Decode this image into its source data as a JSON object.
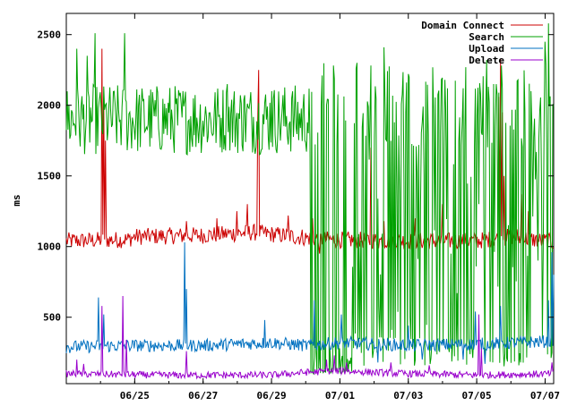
{
  "chart_data": {
    "type": "line",
    "ylabel": "ms",
    "xlabel": "",
    "ylim": [
      30,
      2650
    ],
    "xlim": [
      "2009-06-23T00:00",
      "2009-07-07T06:00"
    ],
    "grid": false,
    "legend_position": "top-right",
    "x_ticks": [
      "06/25",
      "06/27",
      "06/29",
      "07/01",
      "07/03",
      "07/05",
      "07/07"
    ],
    "y_ticks": [
      500,
      1000,
      1500,
      2000,
      2500
    ],
    "series": [
      {
        "name": "Domain Connect",
        "color": "#cc0000",
        "baseline": [
          [
            0,
            1040
          ],
          [
            1.8,
            1050
          ],
          [
            2,
            1070
          ],
          [
            4,
            1080
          ],
          [
            5.5,
            1100
          ],
          [
            7.5,
            1050
          ],
          [
            10,
            1040
          ],
          [
            12,
            1040
          ],
          [
            13,
            1070
          ],
          [
            14.25,
            1030
          ]
        ],
        "spikes": [
          [
            1.05,
            2400
          ],
          [
            1.1,
            2050
          ],
          [
            1.15,
            1750
          ],
          [
            5.6,
            1900
          ],
          [
            5.62,
            2250
          ],
          [
            6.9,
            1120
          ],
          [
            12.65,
            2060
          ],
          [
            12.7,
            2330
          ],
          [
            12.75,
            1950
          ],
          [
            12.8,
            1500
          ],
          [
            13.3,
            1370
          ],
          [
            13.5,
            1250
          ],
          [
            8.9,
            1700
          ],
          [
            7.2,
            1200
          ],
          [
            3.5,
            1180
          ],
          [
            4.4,
            1200
          ],
          [
            5.0,
            1250
          ],
          [
            5.3,
            1300
          ],
          [
            7.4,
            950
          ],
          [
            6.5,
            1220
          ],
          [
            11.0,
            1300
          ],
          [
            10.2,
            1200
          ],
          [
            9.3,
            1180
          ]
        ]
      },
      {
        "name": "Search",
        "color": "#00a000",
        "segments": [
          {
            "from": 0,
            "to": 7.1,
            "low": 1650,
            "high": 2150,
            "peaks": [
              [
                0.3,
                2400
              ],
              [
                0.85,
                2510
              ],
              [
                1.7,
                2510
              ],
              [
                0.6,
                2350
              ],
              [
                3.4,
                2100
              ],
              [
                4.7,
                2150
              ],
              [
                5.2,
                2040
              ],
              [
                6.0,
                2100
              ],
              [
                6.6,
                2050
              ]
            ]
          },
          {
            "from": 7.1,
            "to": 8.35,
            "low": 100,
            "high": 300,
            "peaks": [
              [
                7.12,
                1750
              ],
              [
                7.4,
                300
              ],
              [
                8.0,
                280
              ]
            ]
          },
          {
            "from": 8.35,
            "to": 14.25,
            "low": 150,
            "high": 2300,
            "peaks": [
              [
                8.5,
                2300
              ],
              [
                9.3,
                2410
              ],
              [
                9.6,
                1880
              ],
              [
                10.4,
                1880
              ],
              [
                11.1,
                1970
              ],
              [
                11.6,
                2120
              ],
              [
                12.3,
                2320
              ],
              [
                12.5,
                2150
              ],
              [
                13.2,
                2180
              ],
              [
                13.6,
                2100
              ],
              [
                14.0,
                2450
              ],
              [
                14.1,
                2580
              ]
            ]
          }
        ]
      },
      {
        "name": "Upload",
        "color": "#0070c0",
        "baseline": [
          [
            0,
            290
          ],
          [
            2,
            300
          ],
          [
            4,
            300
          ],
          [
            6,
            320
          ],
          [
            7,
            300
          ],
          [
            8,
            320
          ],
          [
            10,
            300
          ],
          [
            12,
            310
          ],
          [
            14.25,
            330
          ]
        ],
        "spikes": [
          [
            0.95,
            640
          ],
          [
            1.1,
            520
          ],
          [
            3.45,
            1030
          ],
          [
            3.5,
            700
          ],
          [
            7.25,
            620
          ],
          [
            8.05,
            520
          ],
          [
            10.0,
            440
          ],
          [
            11.95,
            540
          ],
          [
            12.7,
            580
          ],
          [
            14.1,
            620
          ],
          [
            14.2,
            960
          ],
          [
            14.25,
            800
          ],
          [
            5.8,
            480
          ],
          [
            9.1,
            180
          ],
          [
            10.4,
            200
          ],
          [
            11.6,
            200
          ],
          [
            12.25,
            170
          ]
        ]
      },
      {
        "name": "Delete",
        "color": "#9900cc",
        "baseline": [
          [
            0,
            100
          ],
          [
            3,
            90
          ],
          [
            6,
            90
          ],
          [
            7,
            110
          ],
          [
            8,
            120
          ],
          [
            10,
            100
          ],
          [
            12,
            90
          ],
          [
            14.25,
            100
          ]
        ],
        "spikes": [
          [
            0.3,
            200
          ],
          [
            0.5,
            170
          ],
          [
            1.05,
            580
          ],
          [
            1.65,
            650
          ],
          [
            1.75,
            340
          ],
          [
            3.5,
            260
          ],
          [
            7.6,
            200
          ],
          [
            7.85,
            230
          ],
          [
            8.2,
            180
          ],
          [
            12.05,
            520
          ],
          [
            12.15,
            280
          ],
          [
            14.2,
            180
          ],
          [
            9.5,
            180
          ],
          [
            10.6,
            160
          ]
        ]
      }
    ]
  }
}
